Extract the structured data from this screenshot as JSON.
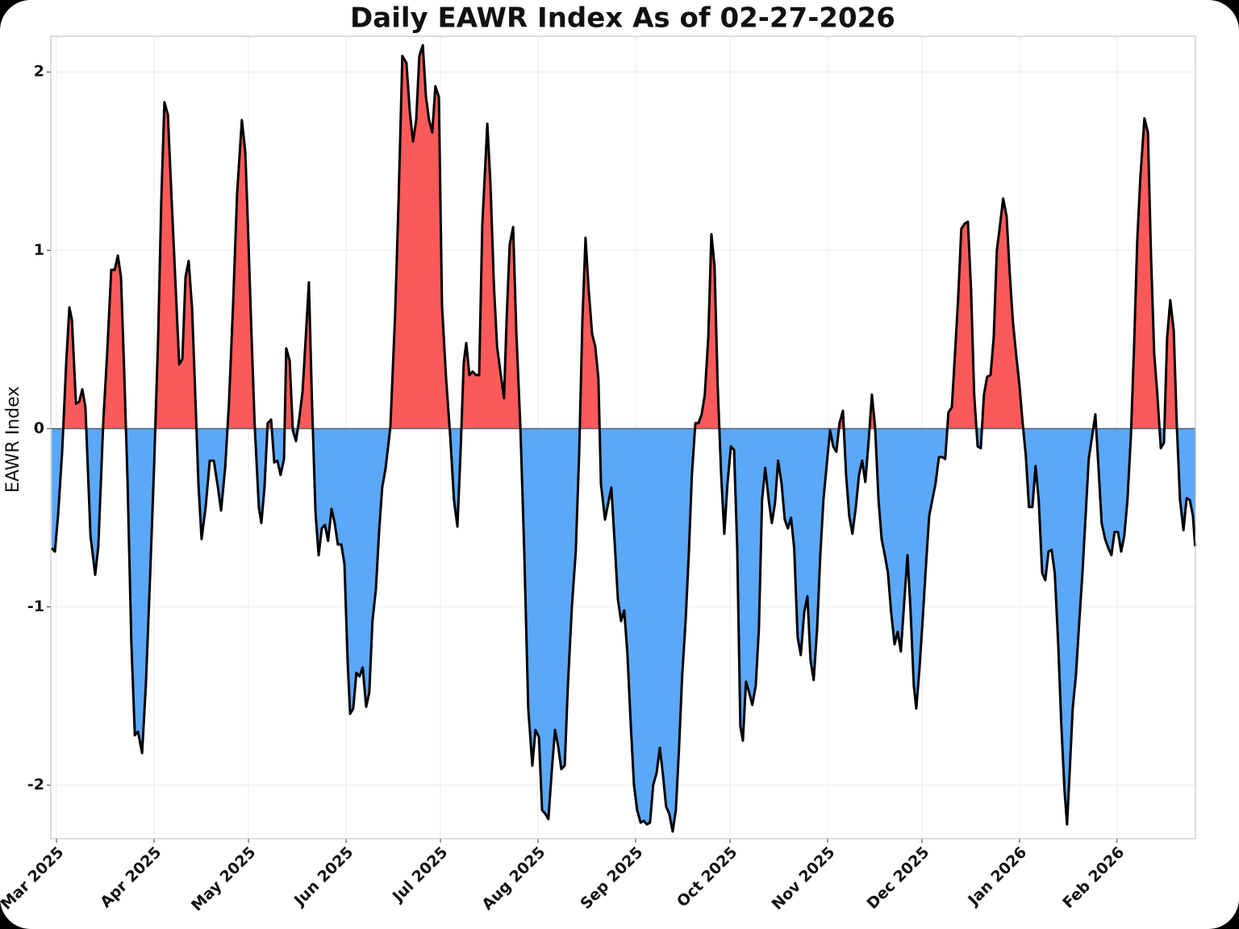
{
  "chart_data": {
    "type": "area",
    "title": "Daily EAWR Index As of 02-27-2026",
    "y_label": "EAWR Index",
    "positive_color": "#fc5a5a",
    "negative_color": "#5ba8f7",
    "line_color": "#000000",
    "grid": true,
    "xlim": [
      -1.8,
      361.9
    ],
    "ylim": [
      -2.3,
      2.2
    ],
    "yticks": [
      -2,
      -1,
      0,
      1,
      2
    ],
    "xticks": [
      {
        "value": 0,
        "label": "Mar 2025"
      },
      {
        "value": 31,
        "label": "Apr 2025"
      },
      {
        "value": 61,
        "label": "May 2025"
      },
      {
        "value": 92,
        "label": "Jun 2025"
      },
      {
        "value": 122,
        "label": "Jul 2025"
      },
      {
        "value": 153,
        "label": "Aug 2025"
      },
      {
        "value": 184,
        "label": "Sep 2025"
      },
      {
        "value": 214,
        "label": "Oct 2025"
      },
      {
        "value": 245,
        "label": "Nov 2025"
      },
      {
        "value": 275,
        "label": "Dec 2025"
      },
      {
        "value": 306,
        "label": "Jan 2026"
      },
      {
        "value": 337,
        "label": "Feb 2026"
      }
    ],
    "x": [
      -1.5,
      -0.5,
      0.5,
      1.8,
      3.1,
      4.1,
      4.9,
      6.2,
      7.2,
      8.2,
      9.2,
      10.8,
      12.3,
      13.3,
      14.9,
      16.1,
      17.4,
      18.5,
      19.5,
      20.5,
      21.5,
      22.6,
      23.8,
      24.9,
      25.9,
      27.2,
      28.4,
      29.7,
      31.0,
      32.3,
      33.3,
      34.3,
      35.4,
      36.6,
      37.9,
      39.0,
      40.0,
      41.0,
      42.0,
      43.1,
      44.1,
      45.1,
      46.1,
      47.4,
      48.7,
      50.0,
      51.3,
      52.3,
      53.6,
      54.8,
      56.1,
      57.4,
      58.9,
      60.0,
      61.0,
      62.0,
      63.0,
      64.3,
      65.1,
      66.1,
      67.1,
      68.2,
      69.2,
      70.2,
      71.2,
      72.3,
      73.0,
      74.1,
      75.1,
      76.1,
      77.1,
      78.2,
      79.2,
      80.2,
      81.2,
      82.3,
      83.3,
      84.3,
      85.3,
      86.3,
      87.4,
      88.4,
      89.4,
      90.5,
      91.5,
      92.5,
      93.3,
      94.3,
      95.3,
      96.3,
      97.3,
      98.4,
      99.4,
      100.4,
      101.5,
      102.5,
      103.5,
      104.6,
      106.1,
      107.6,
      108.7,
      109.9,
      111.2,
      112.3,
      113.3,
      114.3,
      115.3,
      116.4,
      117.4,
      118.4,
      119.4,
      120.4,
      121.5,
      122.5,
      123.8,
      125.1,
      126.3,
      127.4,
      128.4,
      129.4,
      130.2,
      131.2,
      132.2,
      133.3,
      134.3,
      135.3,
      136.9,
      137.9,
      139.0,
      140.0,
      141.2,
      142.2,
      143.0,
      144.0,
      145.1,
      146.1,
      147.4,
      148.6,
      149.9,
      151.2,
      152.2,
      153.3,
      154.3,
      155.3,
      156.3,
      157.3,
      158.4,
      159.4,
      160.4,
      161.5,
      162.5,
      163.8,
      165.0,
      166.1,
      167.1,
      168.1,
      169.1,
      170.2,
      171.2,
      172.2,
      173.0,
      174.3,
      175.3,
      176.3,
      177.3,
      178.4,
      179.4,
      180.4,
      181.4,
      182.5,
      183.5,
      184.5,
      185.6,
      186.6,
      187.6,
      188.6,
      189.6,
      190.7,
      191.7,
      192.7,
      193.7,
      194.7,
      195.8,
      196.8,
      197.8,
      198.8,
      199.9,
      200.9,
      201.9,
      203.0,
      204.0,
      205.0,
      206.0,
      207.1,
      208.1,
      209.1,
      210.1,
      211.2,
      212.2,
      213.2,
      214.3,
      215.3,
      216.3,
      217.3,
      218.1,
      219.1,
      220.1,
      221.1,
      222.2,
      223.2,
      224.2,
      225.2,
      226.3,
      227.3,
      228.3,
      229.3,
      230.4,
      231.4,
      232.4,
      233.4,
      234.4,
      235.5,
      236.5,
      237.6,
      238.6,
      239.6,
      240.6,
      241.7,
      242.7,
      243.7,
      244.7,
      245.8,
      246.8,
      247.8,
      248.8,
      249.9,
      250.9,
      251.9,
      252.9,
      254.0,
      255.0,
      256.0,
      257.0,
      258.1,
      259.1,
      260.1,
      261.2,
      262.2,
      263.2,
      264.2,
      265.2,
      266.3,
      267.3,
      268.3,
      269.3,
      270.4,
      271.4,
      272.4,
      273.2,
      274.2,
      275.2,
      276.3,
      277.3,
      278.3,
      279.3,
      280.4,
      281.4,
      282.4,
      283.4,
      284.5,
      285.5,
      286.5,
      287.5,
      288.6,
      289.6,
      290.6,
      291.6,
      292.7,
      293.7,
      294.7,
      295.7,
      296.8,
      297.8,
      298.8,
      299.8,
      300.8,
      301.9,
      302.9,
      303.9,
      304.9,
      306.0,
      307.0,
      308.0,
      309.0,
      310.1,
      311.1,
      312.1,
      313.2,
      314.2,
      315.2,
      316.2,
      317.2,
      318.3,
      319.3,
      320.3,
      321.1,
      321.9,
      322.9,
      323.9,
      325.0,
      326.0,
      327.0,
      328.0,
      329.1,
      330.1,
      331.1,
      332.1,
      333.2,
      334.2,
      335.2,
      336.2,
      337.3,
      338.3,
      339.3,
      340.3,
      341.4,
      342.4,
      343.4,
      344.4,
      345.7,
      346.8,
      347.8,
      348.8,
      349.8,
      350.9,
      351.9,
      352.9,
      353.9,
      355.0,
      356.0,
      357.0,
      358.1,
      359.1,
      360.1,
      361.1,
      361.8
    ],
    "values": [
      -0.67,
      -0.69,
      -0.49,
      -0.13,
      0.37,
      0.68,
      0.61,
      0.14,
      0.15,
      0.22,
      0.12,
      -0.6,
      -0.82,
      -0.66,
      0.05,
      0.42,
      0.89,
      0.89,
      0.97,
      0.85,
      0.33,
      -0.31,
      -1.21,
      -1.72,
      -1.7,
      -1.82,
      -1.44,
      -0.85,
      -0.22,
      0.51,
      1.28,
      1.83,
      1.76,
      1.28,
      0.78,
      0.36,
      0.39,
      0.85,
      0.94,
      0.67,
      0.19,
      -0.31,
      -0.62,
      -0.44,
      -0.18,
      -0.18,
      -0.33,
      -0.46,
      -0.22,
      0.14,
      0.69,
      1.32,
      1.73,
      1.55,
      1.05,
      0.51,
      0.01,
      -0.44,
      -0.53,
      -0.33,
      0.03,
      0.05,
      -0.19,
      -0.18,
      -0.26,
      -0.17,
      0.45,
      0.38,
      -0.01,
      -0.07,
      0.05,
      0.21,
      0.51,
      0.82,
      0.14,
      -0.47,
      -0.71,
      -0.56,
      -0.54,
      -0.63,
      -0.45,
      -0.53,
      -0.65,
      -0.65,
      -0.76,
      -1.3,
      -1.6,
      -1.57,
      -1.37,
      -1.39,
      -1.34,
      -1.56,
      -1.48,
      -1.08,
      -0.9,
      -0.58,
      -0.33,
      -0.22,
      0.01,
      0.64,
      1.28,
      2.09,
      2.05,
      1.77,
      1.61,
      1.73,
      2.09,
      2.15,
      1.86,
      1.73,
      1.66,
      1.92,
      1.86,
      0.69,
      0.28,
      -0.04,
      -0.4,
      -0.55,
      -0.13,
      0.37,
      0.48,
      0.3,
      0.32,
      0.3,
      0.3,
      1.14,
      1.71,
      1.37,
      0.8,
      0.46,
      0.3,
      0.17,
      0.6,
      1.03,
      1.13,
      0.55,
      0.01,
      -0.67,
      -1.57,
      -1.89,
      -1.69,
      -1.73,
      -2.14,
      -2.16,
      -2.19,
      -1.94,
      -1.69,
      -1.78,
      -1.91,
      -1.89,
      -1.44,
      -0.99,
      -0.69,
      -0.13,
      0.6,
      1.07,
      0.78,
      0.53,
      0.46,
      0.28,
      -0.31,
      -0.51,
      -0.42,
      -0.33,
      -0.62,
      -0.96,
      -1.08,
      -1.02,
      -1.26,
      -1.67,
      -2.0,
      -2.14,
      -2.21,
      -2.2,
      -2.22,
      -2.21,
      -2.0,
      -1.93,
      -1.79,
      -1.94,
      -2.12,
      -2.16,
      -2.26,
      -2.14,
      -1.8,
      -1.39,
      -1.08,
      -0.71,
      -0.26,
      0.03,
      0.03,
      0.08,
      0.19,
      0.51,
      1.09,
      0.91,
      0.24,
      -0.26,
      -0.59,
      -0.31,
      -0.1,
      -0.12,
      -0.67,
      -1.67,
      -1.75,
      -1.42,
      -1.48,
      -1.55,
      -1.44,
      -1.12,
      -0.4,
      -0.22,
      -0.4,
      -0.53,
      -0.42,
      -0.18,
      -0.31,
      -0.51,
      -0.56,
      -0.5,
      -0.67,
      -1.17,
      -1.27,
      -1.03,
      -0.94,
      -1.3,
      -1.41,
      -1.12,
      -0.71,
      -0.4,
      -0.21,
      -0.01,
      -0.1,
      -0.13,
      0.03,
      0.1,
      -0.26,
      -0.49,
      -0.59,
      -0.44,
      -0.26,
      -0.18,
      -0.3,
      -0.06,
      0.19,
      0.01,
      -0.4,
      -0.62,
      -0.71,
      -0.81,
      -1.03,
      -1.21,
      -1.14,
      -1.25,
      -0.99,
      -0.71,
      -1.03,
      -1.44,
      -1.57,
      -1.35,
      -1.08,
      -0.76,
      -0.49,
      -0.4,
      -0.31,
      -0.16,
      -0.16,
      -0.17,
      0.09,
      0.12,
      0.42,
      0.73,
      1.12,
      1.15,
      1.16,
      0.78,
      0.19,
      -0.1,
      -0.11,
      0.19,
      0.29,
      0.3,
      0.51,
      1.0,
      1.14,
      1.29,
      1.19,
      0.87,
      0.6,
      0.42,
      0.24,
      0.03,
      -0.15,
      -0.44,
      -0.44,
      -0.21,
      -0.4,
      -0.81,
      -0.85,
      -0.69,
      -0.68,
      -0.81,
      -1.21,
      -1.67,
      -2.03,
      -2.22,
      -1.94,
      -1.57,
      -1.39,
      -1.08,
      -0.81,
      -0.49,
      -0.17,
      -0.04,
      0.08,
      -0.22,
      -0.53,
      -0.62,
      -0.67,
      -0.71,
      -0.58,
      -0.58,
      -0.69,
      -0.6,
      -0.4,
      -0.04,
      0.46,
      1.05,
      1.41,
      1.74,
      1.66,
      0.96,
      0.42,
      0.19,
      -0.11,
      -0.08,
      0.51,
      0.72,
      0.55,
      0.01,
      -0.4,
      -0.57,
      -0.39,
      -0.4,
      -0.49,
      -0.66
    ]
  }
}
